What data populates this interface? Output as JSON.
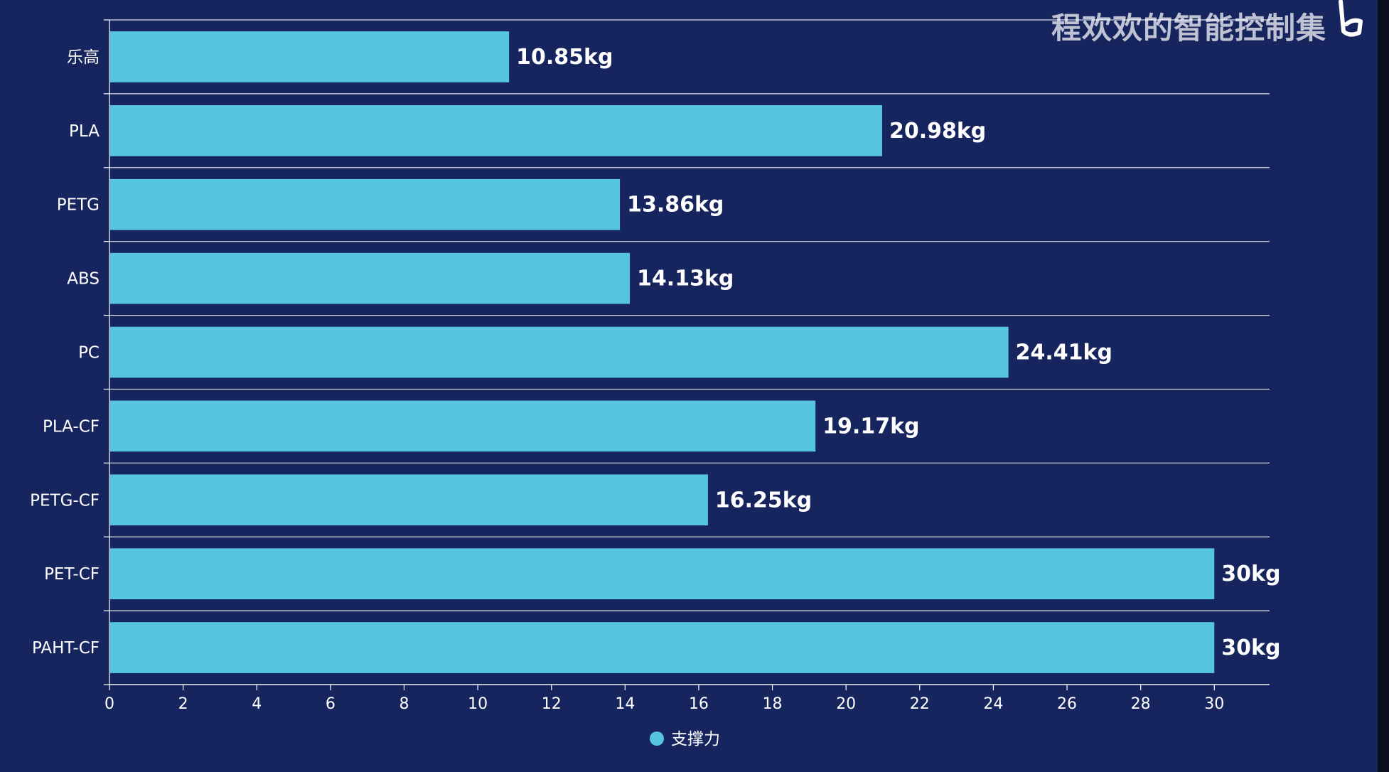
{
  "watermark": "程欢欢的智能控制集",
  "chart_data": {
    "type": "bar",
    "orientation": "horizontal",
    "categories": [
      "乐高",
      "PLA",
      "PETG",
      "ABS",
      "PC",
      "PLA-CF",
      "PETG-CF",
      "PET-CF",
      "PAHT-CF"
    ],
    "series": [
      {
        "name": "支撑力",
        "values": [
          10.85,
          20.98,
          13.86,
          14.13,
          24.41,
          19.17,
          16.25,
          30,
          30
        ],
        "labels": [
          "10.85kg",
          "20.98kg",
          "13.86kg",
          "14.13kg",
          "24.41kg",
          "19.17kg",
          "16.25kg",
          "30kg",
          "30kg"
        ],
        "color": "#55c5e0"
      }
    ],
    "xlim": [
      0,
      31.5
    ],
    "xticks": [
      0,
      2,
      4,
      6,
      8,
      10,
      12,
      14,
      16,
      18,
      20,
      22,
      24,
      26,
      28,
      30
    ],
    "grid": true,
    "legend_position": "bottom-center",
    "colors": {
      "background": "#17255f",
      "bar": "#55c5e0",
      "grid": "#ffffff",
      "text": "#ffffff"
    }
  }
}
